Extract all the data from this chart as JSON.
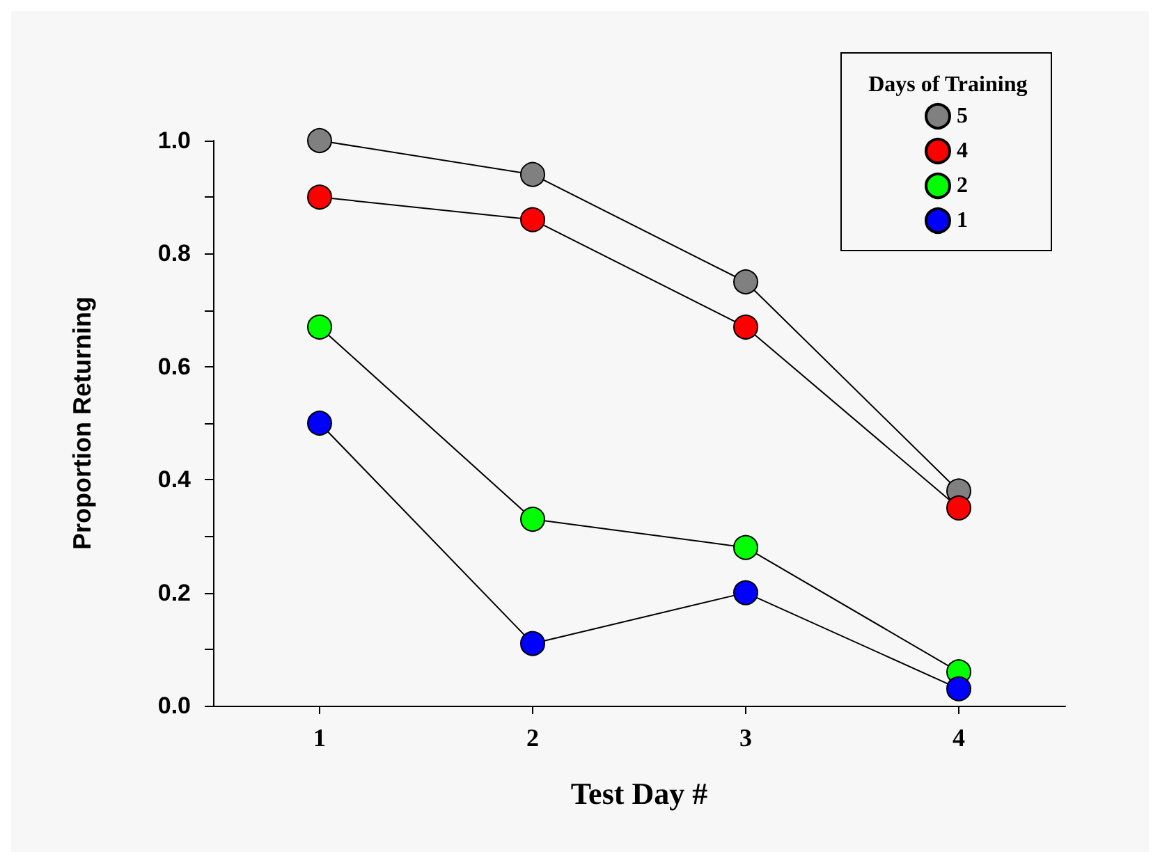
{
  "chart_data": {
    "type": "line",
    "xlabel": "Test Day #",
    "ylabel": "Proportion Returning",
    "legend_title": "Days of Training",
    "categories": [
      "1",
      "2",
      "3",
      "4"
    ],
    "series": [
      {
        "name": "5",
        "color": "#808080",
        "values": [
          1.0,
          0.94,
          0.75,
          0.38
        ]
      },
      {
        "name": "4",
        "color": "#ff0000",
        "values": [
          0.9,
          0.86,
          0.67,
          0.35
        ]
      },
      {
        "name": "2",
        "color": "#00ff00",
        "values": [
          0.67,
          0.33,
          0.28,
          0.06
        ]
      },
      {
        "name": "1",
        "color": "#0000ff",
        "values": [
          0.5,
          0.11,
          0.2,
          0.03
        ]
      }
    ],
    "ylim": [
      0,
      1
    ],
    "yticks": [
      {
        "value": 0,
        "label": "0.0"
      },
      {
        "value": 0.1,
        "label": null
      },
      {
        "value": 0.2,
        "label": "0.2"
      },
      {
        "value": 0.3,
        "label": null
      },
      {
        "value": 0.4,
        "label": "0.4"
      },
      {
        "value": 0.5,
        "label": null
      },
      {
        "value": 0.6,
        "label": "0.6"
      },
      {
        "value": 0.7,
        "label": null
      },
      {
        "value": 0.8,
        "label": "0.8"
      },
      {
        "value": 0.9,
        "label": null
      },
      {
        "value": 1,
        "label": "1.0"
      }
    ],
    "legend": "top right",
    "marker": "circle",
    "line_style": "solid",
    "grid": false
  }
}
